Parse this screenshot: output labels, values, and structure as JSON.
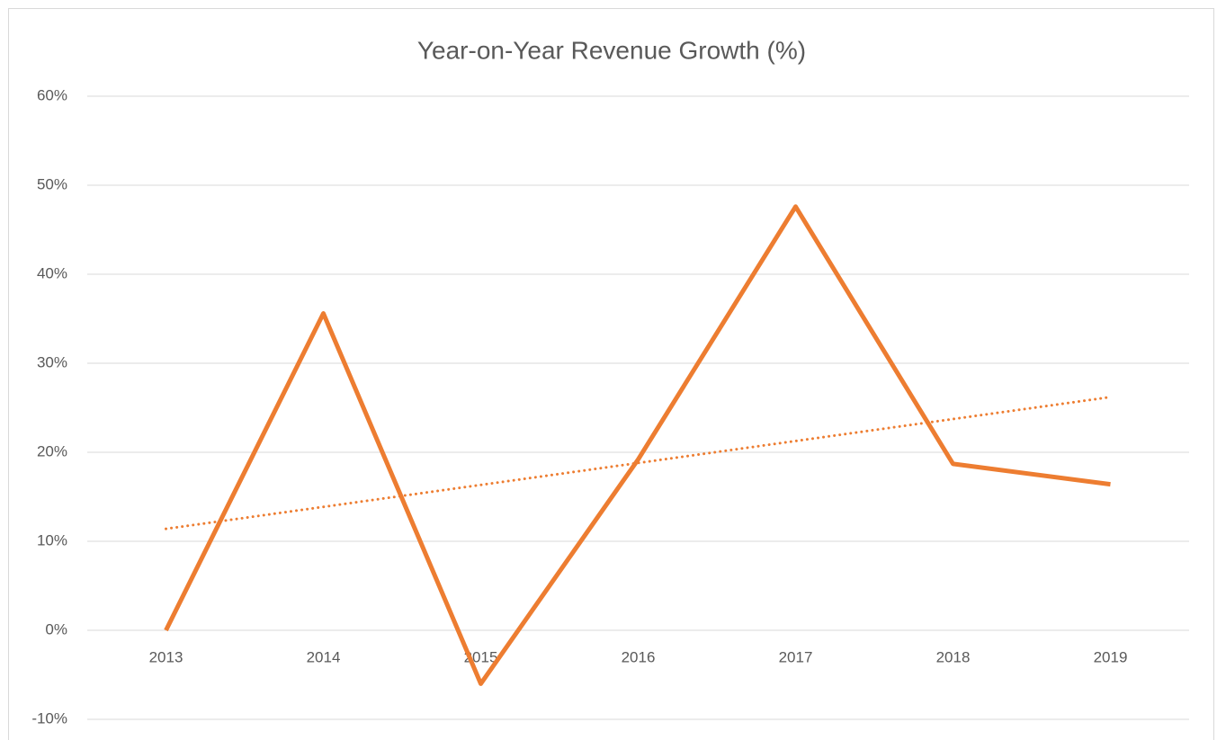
{
  "chart_data": {
    "type": "line",
    "title": "Year-on-Year Revenue Growth (%)",
    "categories": [
      "2013",
      "2014",
      "2015",
      "2016",
      "2017",
      "2018",
      "2019"
    ],
    "series": [
      {
        "color": "#ed7d31",
        "values": [
          0,
          35.6,
          -6,
          19.2,
          47.6,
          18.7,
          16.4
        ]
      }
    ],
    "trendline": {
      "color": "#ed7d31",
      "style": "dotted",
      "values": [
        11.4,
        26.2
      ]
    },
    "ylim": [
      -10,
      60
    ],
    "yticks": [
      {
        "value": -10,
        "label": "-10%"
      },
      {
        "value": 0,
        "label": "0%"
      },
      {
        "value": 10,
        "label": "10%"
      },
      {
        "value": 20,
        "label": "20%"
      },
      {
        "value": 30,
        "label": "30%"
      },
      {
        "value": 40,
        "label": "40%"
      },
      {
        "value": 50,
        "label": "50%"
      },
      {
        "value": 60,
        "label": "60%"
      }
    ],
    "grid": true
  }
}
